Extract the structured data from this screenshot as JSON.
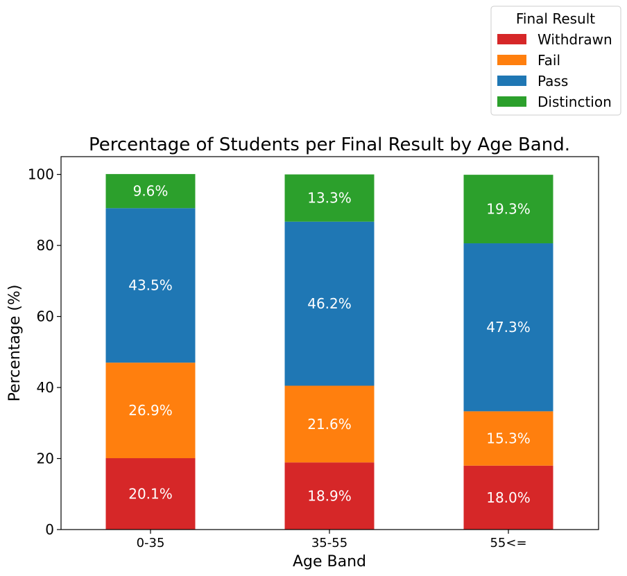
{
  "chart_data": {
    "type": "bar",
    "stacked": true,
    "title": "Percentage of Students per Final Result by Age Band.",
    "xlabel": "Age Band",
    "ylabel": "Percentage (%)",
    "ylim": [
      0,
      105
    ],
    "yticks": [
      "0",
      "20",
      "40",
      "60",
      "80",
      "100"
    ],
    "categories": [
      "0-35",
      "35-55",
      "55<="
    ],
    "series": [
      {
        "name": "Withdrawn",
        "color": "#d62728",
        "values": [
          20.1,
          18.9,
          18.0
        ],
        "labels": [
          "20.1%",
          "18.9%",
          "18.0%"
        ]
      },
      {
        "name": "Fail",
        "color": "#ff7f0e",
        "values": [
          26.9,
          21.6,
          15.3
        ],
        "labels": [
          "26.9%",
          "21.6%",
          "15.3%"
        ]
      },
      {
        "name": "Pass",
        "color": "#1f77b4",
        "values": [
          43.5,
          46.2,
          47.3
        ],
        "labels": [
          "43.5%",
          "46.2%",
          "47.3%"
        ]
      },
      {
        "name": "Distinction",
        "color": "#2ca02c",
        "values": [
          9.6,
          13.3,
          19.3
        ],
        "labels": [
          "9.6%",
          "13.3%",
          "19.3%"
        ]
      }
    ],
    "legend": {
      "title": "Final Result",
      "placement": "top-right, above plot"
    },
    "grid": false
  }
}
